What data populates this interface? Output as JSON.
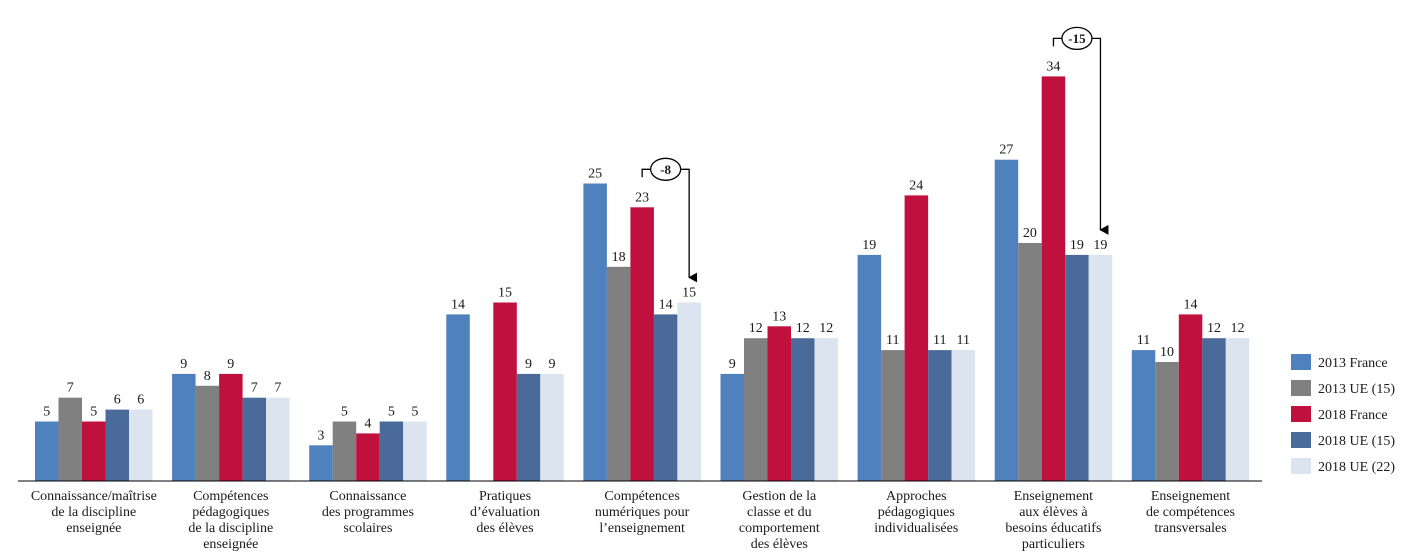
{
  "chart_data": {
    "type": "bar",
    "title": "",
    "xlabel": "",
    "ylabel": "",
    "ylim": [
      0,
      36
    ],
    "grid": false,
    "legend_position": "right",
    "categories": [
      [
        "Connaissance/maîtrise",
        "de la discipline",
        "enseignée"
      ],
      [
        "Compétences",
        "pédagogiques",
        "de la discipline",
        "enseignée"
      ],
      [
        "Connaissance",
        "des programmes",
        "scolaires"
      ],
      [
        "Pratiques",
        "d’évaluation",
        "des élèves"
      ],
      [
        "Compétences",
        "numériques pour",
        "l’enseignement"
      ],
      [
        "Gestion de la",
        "classe et du",
        "comportement",
        "des élèves"
      ],
      [
        "Approches",
        "pédagogiques",
        "individualisées"
      ],
      [
        "Enseignement",
        "aux élèves à",
        "besoins éducatifs",
        "particuliers"
      ],
      [
        "Enseignement",
        "de compétences",
        "transversales"
      ]
    ],
    "series": [
      {
        "name": "2013 France",
        "color": "#4f81bd",
        "values": [
          5,
          9,
          3,
          14,
          25,
          9,
          19,
          27,
          11
        ]
      },
      {
        "name": "2013 UE (15)",
        "color": "#808080",
        "values": [
          7,
          8,
          5,
          null,
          18,
          12,
          11,
          20,
          10
        ]
      },
      {
        "name": "2018 France",
        "color": "#c0103e",
        "values": [
          5,
          9,
          4,
          15,
          23,
          13,
          24,
          34,
          14
        ]
      },
      {
        "name": "2018 UE (15)",
        "color": "#4a6a9a",
        "values": [
          6,
          7,
          5,
          9,
          14,
          12,
          11,
          19,
          12
        ]
      },
      {
        "name": "2018 UE (22)",
        "color": "#dce4ef",
        "values": [
          6,
          7,
          5,
          9,
          15,
          12,
          11,
          19,
          12
        ]
      }
    ],
    "annotations": [
      {
        "label": "-8",
        "category_index": 4,
        "from_series": 2,
        "to_series": 4
      },
      {
        "label": "-15",
        "category_index": 7,
        "from_series": 2,
        "to_series": 4
      }
    ]
  }
}
